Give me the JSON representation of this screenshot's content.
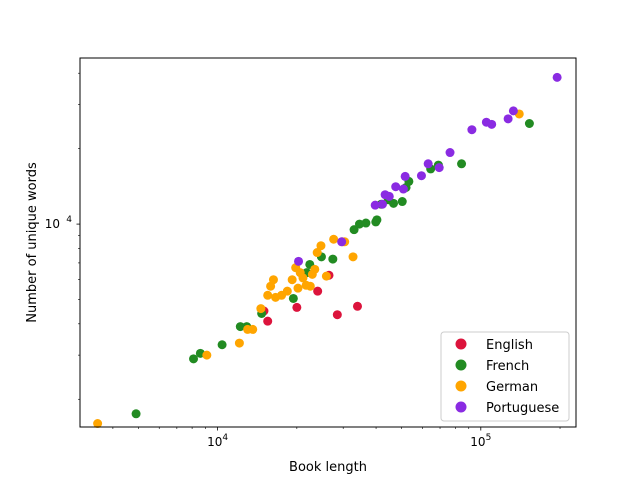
{
  "chart_data": {
    "type": "scatter",
    "title": "",
    "xlabel": "Book length",
    "ylabel": "Number of unique words",
    "xscale": "log",
    "yscale": "log",
    "xlim": [
      3000,
      230000
    ],
    "ylim": [
      1550,
      46000
    ],
    "grid": false,
    "legend_position": "bottom-right",
    "x_ticks": [
      {
        "value": 10000,
        "base": "10",
        "exp": "4"
      },
      {
        "value": 100000,
        "base": "10",
        "exp": "5"
      }
    ],
    "y_ticks": [
      {
        "value": 10000,
        "base": "10",
        "exp": "4"
      }
    ],
    "series": [
      {
        "name": "English",
        "color": "#dc143c",
        "points": [
          [
            15000,
            4500
          ],
          [
            15500,
            4100
          ],
          [
            20000,
            4650
          ],
          [
            24000,
            5400
          ],
          [
            26500,
            6250
          ],
          [
            28500,
            4350
          ],
          [
            34000,
            4700
          ]
        ]
      },
      {
        "name": "French",
        "color": "#228b22",
        "points": [
          [
            4900,
            1750
          ],
          [
            8100,
            2900
          ],
          [
            8600,
            3050
          ],
          [
            10400,
            3300
          ],
          [
            12200,
            3900
          ],
          [
            12900,
            3900
          ],
          [
            14700,
            4400
          ],
          [
            19400,
            5050
          ],
          [
            21800,
            6400
          ],
          [
            22400,
            6900
          ],
          [
            24800,
            7400
          ],
          [
            27400,
            7250
          ],
          [
            33000,
            9500
          ],
          [
            34600,
            10000
          ],
          [
            36600,
            10100
          ],
          [
            39900,
            10200
          ],
          [
            40300,
            10400
          ],
          [
            41800,
            12000
          ],
          [
            44500,
            12500
          ],
          [
            46600,
            12100
          ],
          [
            50300,
            12300
          ],
          [
            52000,
            14000
          ],
          [
            53300,
            14800
          ],
          [
            64500,
            16600
          ],
          [
            69000,
            17200
          ],
          [
            84500,
            17400
          ],
          [
            153000,
            25200
          ]
        ]
      },
      {
        "name": "German",
        "color": "#ffa500",
        "points": [
          [
            3500,
            1600
          ],
          [
            9100,
            3000
          ],
          [
            12100,
            3350
          ],
          [
            13000,
            3800
          ],
          [
            13600,
            3800
          ],
          [
            14600,
            4600
          ],
          [
            15500,
            5200
          ],
          [
            15900,
            5650
          ],
          [
            16300,
            6000
          ],
          [
            16600,
            5100
          ],
          [
            17500,
            5200
          ],
          [
            18400,
            5400
          ],
          [
            19200,
            6000
          ],
          [
            19800,
            6700
          ],
          [
            20200,
            5550
          ],
          [
            20600,
            6400
          ],
          [
            21100,
            6100
          ],
          [
            21700,
            5700
          ],
          [
            22500,
            5650
          ],
          [
            22900,
            6300
          ],
          [
            23400,
            6600
          ],
          [
            23900,
            7700
          ],
          [
            24700,
            8200
          ],
          [
            25900,
            6200
          ],
          [
            27600,
            8700
          ],
          [
            29800,
            8500
          ],
          [
            30400,
            8500
          ],
          [
            32700,
            7400
          ],
          [
            140000,
            27500
          ]
        ]
      },
      {
        "name": "Portuguese",
        "color": "#8a2be2",
        "points": [
          [
            20300,
            7100
          ],
          [
            29600,
            8500
          ],
          [
            39700,
            11900
          ],
          [
            42300,
            12000
          ],
          [
            43300,
            13100
          ],
          [
            44900,
            12900
          ],
          [
            47500,
            14100
          ],
          [
            50800,
            13800
          ],
          [
            51600,
            15500
          ],
          [
            59500,
            15600
          ],
          [
            63100,
            17400
          ],
          [
            69500,
            16800
          ],
          [
            76400,
            19300
          ],
          [
            92500,
            23800
          ],
          [
            105000,
            25500
          ],
          [
            110000,
            25000
          ],
          [
            127000,
            26300
          ],
          [
            133000,
            28300
          ],
          [
            195000,
            38500
          ]
        ]
      }
    ]
  }
}
